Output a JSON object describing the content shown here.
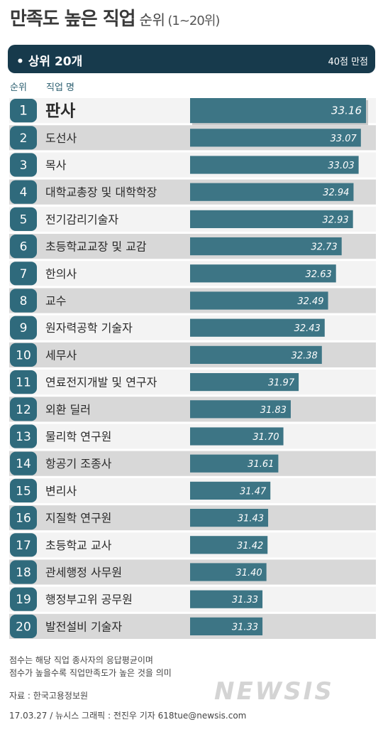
{
  "header": {
    "title": "만족도 높은 직업",
    "subtitle": "순위",
    "range": "(1~20위)"
  },
  "banner": {
    "label": "• 상위 20개",
    "note": "40점 만점"
  },
  "columns": {
    "rank": "순위",
    "job": "직업 명"
  },
  "chart_data": {
    "type": "bar",
    "orientation": "horizontal",
    "title": "만족도 높은 직업 순위 (1~20위)",
    "ranks": [
      "1",
      "2",
      "3",
      "4",
      "5",
      "6",
      "7",
      "8",
      "9",
      "10",
      "11",
      "12",
      "13",
      "14",
      "15",
      "16",
      "17",
      "18",
      "19",
      "20"
    ],
    "categories": [
      "판사",
      "도선사",
      "목사",
      "대학교총장 및 대학학장",
      "전기감리기술자",
      "초등학교교장 및 교감",
      "한의사",
      "교수",
      "원자력공학 기술자",
      "세무사",
      "연료전지개발 및 연구자",
      "외환 딜러",
      "물리학 연구원",
      "항공기 조종사",
      "변리사",
      "지질학 연구원",
      "초등학교 교사",
      "관세행정 사무원",
      "행정부고위 공무원",
      "발전설비 기술자"
    ],
    "values": [
      33.16,
      33.07,
      33.03,
      32.94,
      32.93,
      32.73,
      32.63,
      32.49,
      32.43,
      32.38,
      31.97,
      31.83,
      31.7,
      31.61,
      31.47,
      31.43,
      31.42,
      31.4,
      31.33,
      31.33
    ],
    "value_labels": [
      "33.16",
      "33.07",
      "33.03",
      "32.94",
      "32.93",
      "32.73",
      "32.63",
      "32.49",
      "32.43",
      "32.38",
      "31.97",
      "31.83",
      "31.70",
      "31.61",
      "31.47",
      "31.43",
      "31.42",
      "31.40",
      "31.33",
      "31.33"
    ],
    "bar_color": "#3d7585",
    "rank_box_color": "#2f6a7c",
    "row_light": "#f3f3f3",
    "row_dark": "#d8d8d8"
  },
  "footer": {
    "note1": "점수는 해당 직업 종사자의 응답평균이며",
    "note2": "점수가 높을수록 직업만족도가 높은 것을 의미",
    "source": "자료 : 한국고용정보원",
    "credit": "17.03.27 / 뉴시스 그래픽 : 전진우 기자 618tue@newsis.com",
    "watermark": "NEWSIS"
  }
}
